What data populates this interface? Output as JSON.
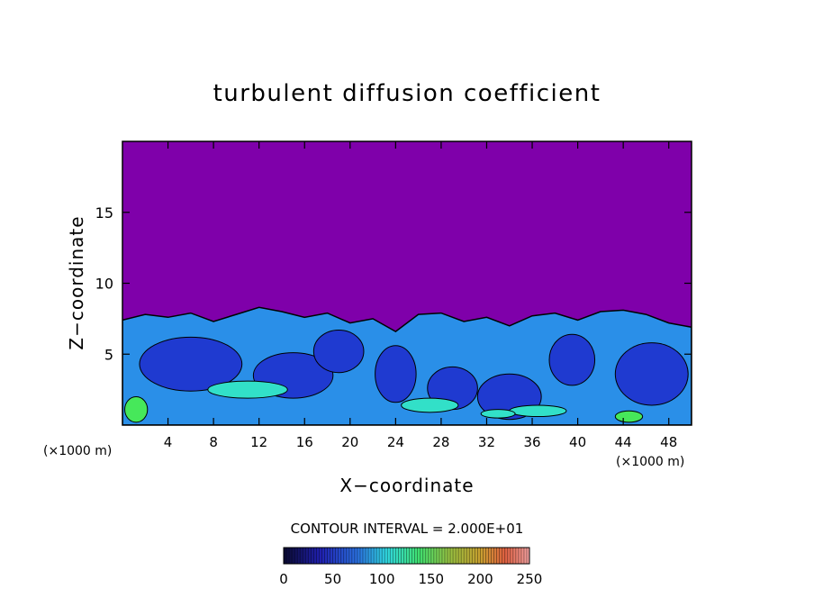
{
  "chart_data": {
    "type": "heatmap",
    "title": "turbulent diffusion coefficient",
    "xlabel": "X−coordinate",
    "ylabel": "Z−coordinate",
    "x_unit_left": "(×1000 m)",
    "x_unit_right": "(×1000 m)",
    "xlim": [
      0,
      50
    ],
    "ylim": [
      0,
      20
    ],
    "x_ticks": [
      4,
      8,
      12,
      16,
      20,
      24,
      28,
      32,
      36,
      40,
      44,
      48
    ],
    "y_ticks": [
      5,
      10,
      15
    ],
    "contour_interval_label": "CONTOUR INTERVAL = 2.000E+01",
    "colorbar": {
      "min": 0,
      "max": 250,
      "ticks": [
        0,
        50,
        100,
        150,
        200,
        250
      ]
    },
    "colors": {
      "background_field": "#7f00aa",
      "low": "#1f3ad0",
      "mid": "#2a8fe8",
      "high": "#32e0c8",
      "peak": "#46e85a"
    },
    "turbulent_layer_top_km": [
      [
        0,
        7.4
      ],
      [
        2,
        7.8
      ],
      [
        4,
        7.6
      ],
      [
        6,
        7.9
      ],
      [
        8,
        7.3
      ],
      [
        10,
        7.8
      ],
      [
        12,
        8.3
      ],
      [
        14,
        8.0
      ],
      [
        16,
        7.6
      ],
      [
        18,
        7.9
      ],
      [
        20,
        7.2
      ],
      [
        22,
        7.5
      ],
      [
        24,
        6.6
      ],
      [
        26,
        7.8
      ],
      [
        28,
        7.9
      ],
      [
        30,
        7.3
      ],
      [
        32,
        7.6
      ],
      [
        34,
        7.0
      ],
      [
        36,
        7.7
      ],
      [
        38,
        7.9
      ],
      [
        40,
        7.4
      ],
      [
        42,
        8.0
      ],
      [
        44,
        8.1
      ],
      [
        46,
        7.8
      ],
      [
        48,
        7.2
      ],
      [
        50,
        6.9
      ]
    ]
  }
}
